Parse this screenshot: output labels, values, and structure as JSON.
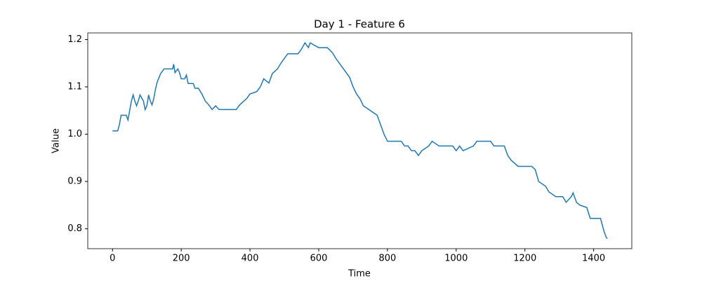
{
  "chart_data": {
    "type": "line",
    "title": "Day 1 - Feature 6",
    "xlabel": "Time",
    "ylabel": "Value",
    "x": [
      0,
      15,
      20,
      25,
      40,
      45,
      50,
      55,
      60,
      65,
      70,
      75,
      80,
      90,
      95,
      100,
      105,
      110,
      115,
      120,
      125,
      130,
      140,
      150,
      175,
      178,
      182,
      190,
      195,
      200,
      210,
      215,
      220,
      235,
      240,
      250,
      260,
      270,
      280,
      290,
      300,
      310,
      360,
      370,
      390,
      400,
      420,
      430,
      440,
      455,
      465,
      480,
      490,
      500,
      510,
      540,
      550,
      560,
      570,
      575,
      600,
      625,
      640,
      650,
      660,
      670,
      680,
      690,
      700,
      710,
      720,
      730,
      750,
      770,
      780,
      790,
      800,
      840,
      850,
      860,
      870,
      880,
      890,
      900,
      920,
      930,
      950,
      990,
      1000,
      1010,
      1020,
      1050,
      1060,
      1100,
      1110,
      1140,
      1150,
      1160,
      1180,
      1220,
      1230,
      1240,
      1260,
      1270,
      1290,
      1310,
      1320,
      1335,
      1340,
      1350,
      1360,
      1380,
      1390,
      1420,
      1430,
      1435,
      1439
    ],
    "series": [
      {
        "name": "Feature 6",
        "color": "#1f77b4",
        "values": [
          1.007,
          1.007,
          1.02,
          1.04,
          1.04,
          1.03,
          1.05,
          1.07,
          1.083,
          1.07,
          1.06,
          1.07,
          1.083,
          1.07,
          1.052,
          1.06,
          1.083,
          1.07,
          1.062,
          1.075,
          1.095,
          1.11,
          1.128,
          1.138,
          1.138,
          1.148,
          1.13,
          1.138,
          1.13,
          1.117,
          1.117,
          1.125,
          1.107,
          1.107,
          1.097,
          1.097,
          1.085,
          1.07,
          1.062,
          1.052,
          1.06,
          1.052,
          1.052,
          1.062,
          1.075,
          1.085,
          1.09,
          1.1,
          1.117,
          1.108,
          1.128,
          1.138,
          1.15,
          1.16,
          1.17,
          1.17,
          1.18,
          1.193,
          1.183,
          1.193,
          1.183,
          1.183,
          1.172,
          1.16,
          1.15,
          1.14,
          1.13,
          1.12,
          1.1,
          1.085,
          1.075,
          1.06,
          1.05,
          1.04,
          1.02,
          1.0,
          0.985,
          0.985,
          0.975,
          0.975,
          0.965,
          0.965,
          0.955,
          0.965,
          0.975,
          0.985,
          0.975,
          0.975,
          0.965,
          0.975,
          0.965,
          0.975,
          0.985,
          0.985,
          0.975,
          0.975,
          0.955,
          0.945,
          0.932,
          0.932,
          0.925,
          0.9,
          0.89,
          0.878,
          0.868,
          0.868,
          0.856,
          0.868,
          0.876,
          0.856,
          0.85,
          0.845,
          0.822,
          0.822,
          0.795,
          0.785,
          0.779
        ]
      }
    ],
    "xlim": [
      -72,
      1511
    ],
    "ylim": [
      0.758,
      1.214
    ],
    "xticks": [
      0,
      200,
      400,
      600,
      800,
      1000,
      1200,
      1400
    ],
    "yticks": [
      0.8,
      0.9,
      {
        "value": 1,
        "label": "1.0"
      },
      1.1,
      1.2
    ],
    "grid": false
  }
}
